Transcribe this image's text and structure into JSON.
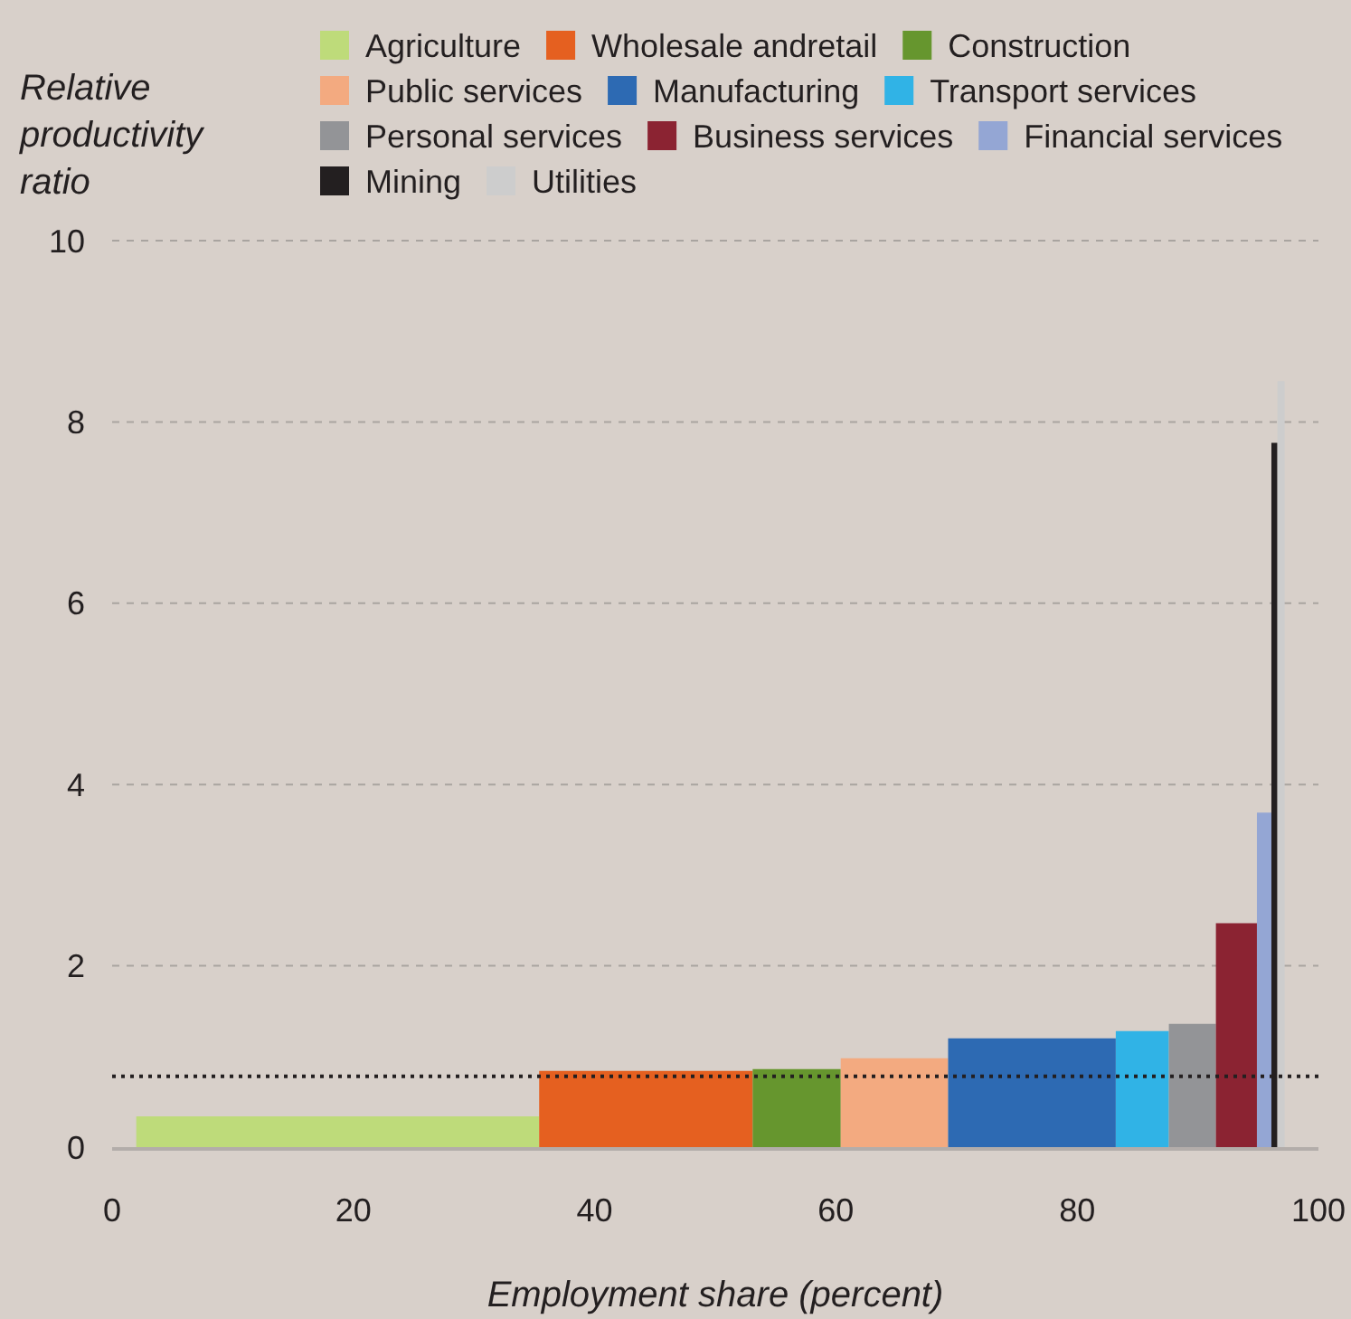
{
  "chart_data": {
    "type": "area",
    "xlabel": "Employment share (percent)",
    "ylabel": "Relative productivity ratio",
    "xlim": [
      0,
      100
    ],
    "xticks": [
      0,
      20,
      40,
      60,
      80,
      100
    ],
    "ylim": [
      0,
      10
    ],
    "yticks": [
      0,
      2,
      4,
      6,
      8,
      10
    ],
    "grid": "y",
    "legend": "top",
    "series": [
      {
        "name": "Agriculture",
        "color": "#bedb7a",
        "x": [
          2,
          35.4
        ],
        "values": [
          0.34,
          0.34
        ]
      },
      {
        "name": "Wholesale andretail",
        "color": "#e56020",
        "x": [
          35.4,
          53.1
        ],
        "values": [
          0.84,
          0.84
        ]
      },
      {
        "name": "Construction",
        "color": "#66962e",
        "x": [
          53.1,
          60.4
        ],
        "values": [
          0.86,
          0.86
        ]
      },
      {
        "name": "Public services",
        "color": "#f3aa80",
        "x": [
          60.4,
          69.3
        ],
        "values": [
          0.98,
          0.98
        ]
      },
      {
        "name": "Manufacturing",
        "color": "#2d6ab3",
        "x": [
          69.3,
          83.2
        ],
        "values": [
          1.2,
          1.2
        ]
      },
      {
        "name": "Transport services",
        "color": "#30b3e6",
        "x": [
          83.2,
          87.6
        ],
        "values": [
          1.28,
          1.28
        ]
      },
      {
        "name": "Personal services",
        "color": "#939497",
        "x": [
          87.6,
          91.5
        ],
        "values": [
          1.36,
          1.36
        ]
      },
      {
        "name": "Business services",
        "color": "#8b2332",
        "x": [
          91.5,
          94.9
        ],
        "values": [
          2.47,
          2.47
        ]
      },
      {
        "name": "Financial services",
        "color": "#94a6d4",
        "x": [
          94.9,
          96.1
        ],
        "values": [
          3.69,
          3.69
        ]
      },
      {
        "name": "Mining",
        "color": "#231f20",
        "x": [
          96.1,
          96.6
        ],
        "values": [
          7.77,
          7.77
        ]
      },
      {
        "name": "Utilities",
        "color": "#cdcdcd",
        "x": [
          96.6,
          97.2
        ],
        "values": [
          8.45,
          8.45
        ]
      }
    ],
    "ref_lines": [
      {
        "axis": "y",
        "value": 0.78,
        "color": "#231f20",
        "line_style": "dotted"
      }
    ]
  }
}
